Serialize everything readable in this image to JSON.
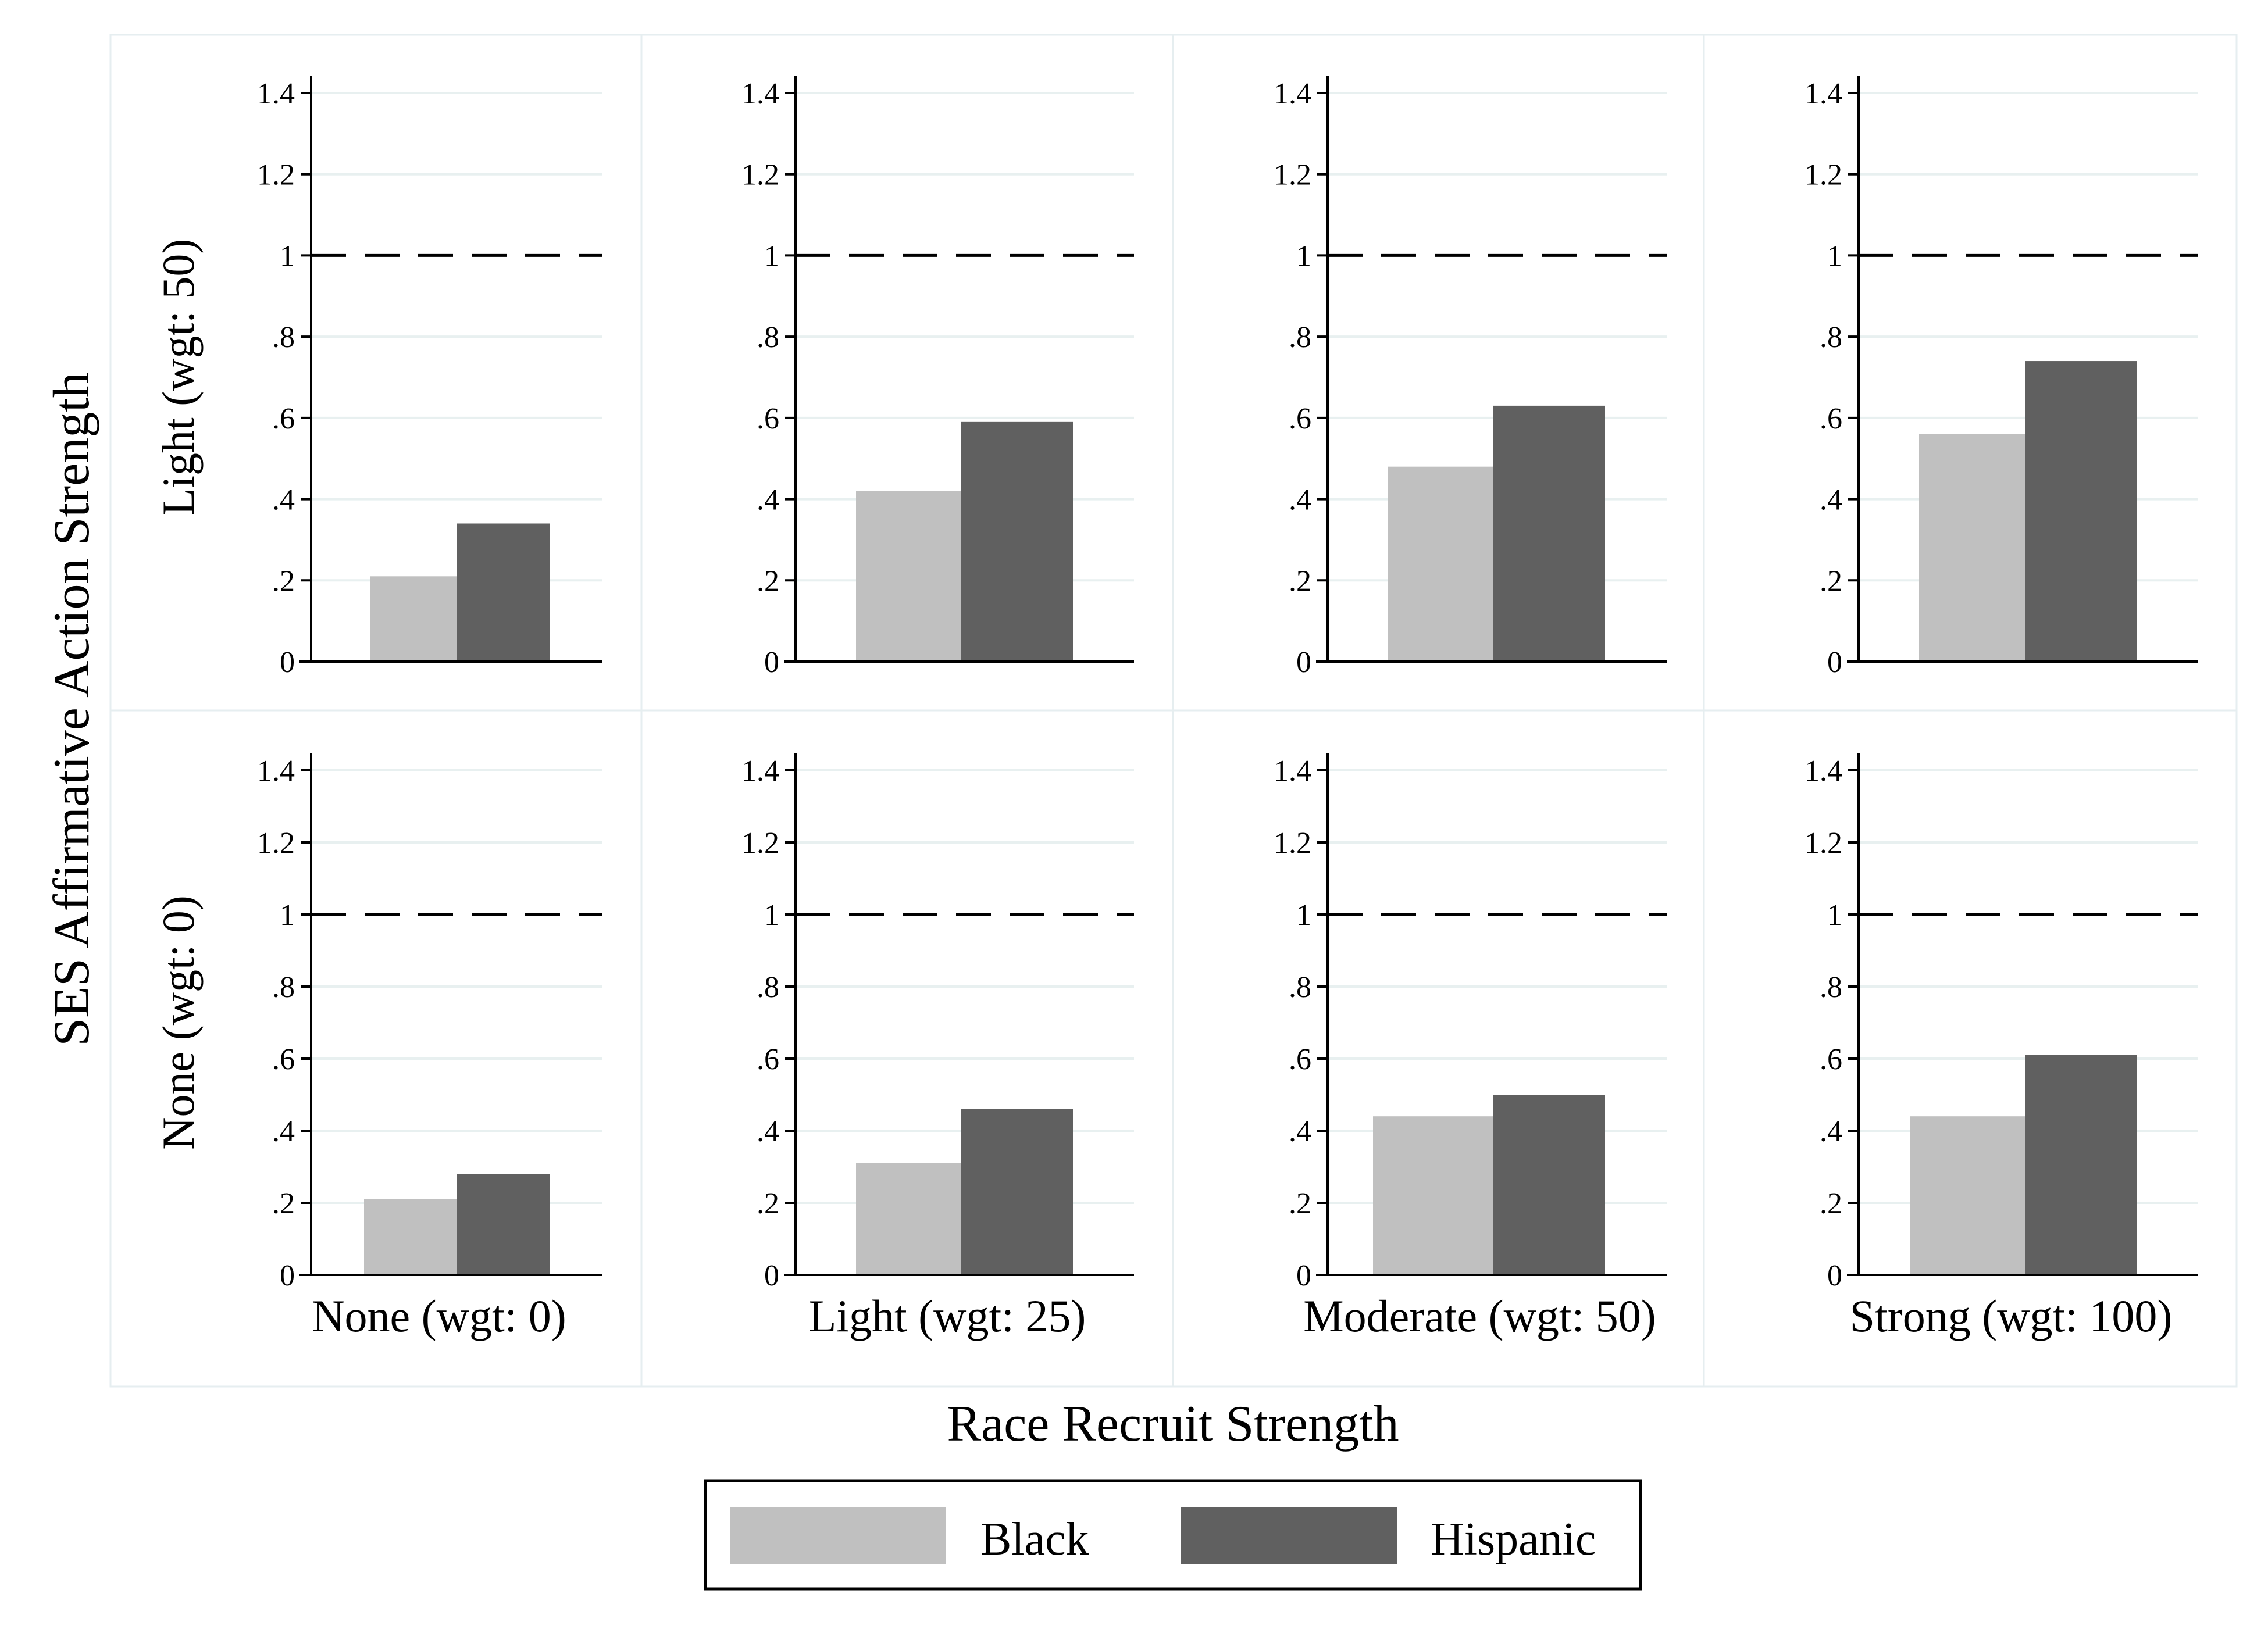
{
  "chart_data": {
    "type": "bar",
    "title": "",
    "xlabel": "Race Recruit Strength",
    "ylabel": "SES Affirmative Action Strength",
    "rows": [
      "Light (wgt: 50)",
      "None (wgt: 0)"
    ],
    "columns": [
      "None (wgt: 0)",
      "Light (wgt: 25)",
      "Moderate (wgt: 50)",
      "Strong (wgt: 100)"
    ],
    "ylim": [
      0,
      1.4
    ],
    "yticks": [
      "0",
      ".2",
      ".4",
      ".6",
      ".8",
      "1",
      "1.2",
      "1.4"
    ],
    "ytick_values": [
      0,
      0.2,
      0.4,
      0.6,
      0.8,
      1,
      1.2,
      1.4
    ],
    "reference_line": 1,
    "grid": true,
    "legend_position": "bottom",
    "series": [
      {
        "name": "Black",
        "color": "#c0c0c0",
        "values": [
          [
            0.21,
            0.42,
            0.48,
            0.56
          ],
          [
            0.21,
            0.31,
            0.44,
            0.44
          ]
        ]
      },
      {
        "name": "Hispanic",
        "color": "#606060",
        "values": [
          [
            0.34,
            0.59,
            0.63,
            0.74
          ],
          [
            0.28,
            0.46,
            0.5,
            0.61
          ]
        ]
      }
    ]
  }
}
